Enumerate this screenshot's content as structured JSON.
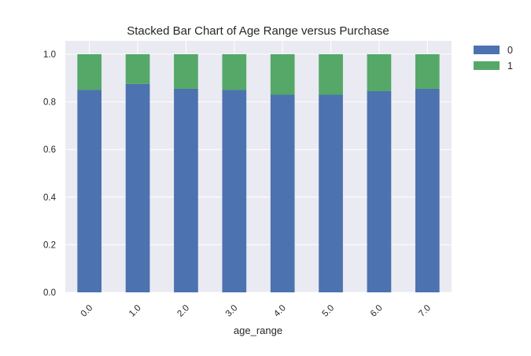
{
  "chart_data": {
    "type": "bar",
    "stacked": true,
    "title": "Stacked Bar Chart of Age Range versus Purchase",
    "xlabel": "age_range",
    "ylabel": "",
    "categories": [
      "0.0",
      "1.0",
      "2.0",
      "3.0",
      "4.0",
      "5.0",
      "6.0",
      "7.0"
    ],
    "series": [
      {
        "name": "0",
        "values": [
          0.85,
          0.875,
          0.855,
          0.85,
          0.83,
          0.83,
          0.845,
          0.855
        ]
      },
      {
        "name": "1",
        "values": [
          0.15,
          0.125,
          0.145,
          0.15,
          0.17,
          0.17,
          0.155,
          0.145
        ]
      }
    ],
    "ylim": [
      0,
      1.0
    ],
    "yticks": [
      "0.0",
      "0.2",
      "0.4",
      "0.6",
      "0.8",
      "1.0"
    ],
    "grid": true,
    "legend_placement": "top-right-outside"
  },
  "colors": {
    "plot_background": "#eaeaf2",
    "grid": "#ffffff",
    "series": [
      "#4c72b0",
      "#55a868"
    ]
  }
}
